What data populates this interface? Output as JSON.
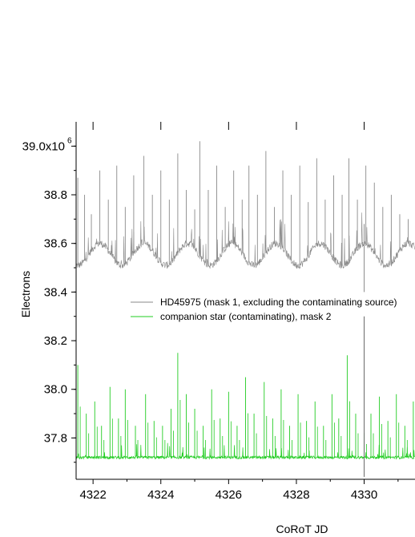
{
  "chart_data": {
    "type": "line",
    "xlabel": "CoRoT JD",
    "ylabel": "Electrons",
    "xlim": [
      4321.5,
      4331.5
    ],
    "ylim": [
      37.63,
      39.1
    ],
    "y_exponent_label": "x10",
    "y_exponent_power": "6",
    "x_ticks": [
      {
        "value": 4322,
        "label": "4322"
      },
      {
        "value": 4324,
        "label": "4324"
      },
      {
        "value": 4326,
        "label": "4326"
      },
      {
        "value": 4328,
        "label": "4328"
      },
      {
        "value": 4330,
        "label": "4330"
      }
    ],
    "y_ticks": [
      {
        "value": 37.8,
        "label": "37.8"
      },
      {
        "value": 38.0,
        "label": "38.0"
      },
      {
        "value": 38.2,
        "label": "38.2"
      },
      {
        "value": 38.4,
        "label": "38.4"
      },
      {
        "value": 38.6,
        "label": "38.6"
      },
      {
        "value": 38.8,
        "label": "38.8"
      },
      {
        "value": 39.0,
        "label": "39.0"
      }
    ],
    "legend_placement": "center-right",
    "series": [
      {
        "name": "HD45975 (mask 1, excluding the contaminating source)",
        "color": "#8a8a8a",
        "baseline": 38.555,
        "modulation_amplitude": 0.045,
        "modulation_period_days": 1.3,
        "spikes": [
          {
            "x": 4321.55,
            "y": 38.87
          },
          {
            "x": 4321.75,
            "y": 38.8
          },
          {
            "x": 4321.95,
            "y": 38.72
          },
          {
            "x": 4322.2,
            "y": 38.9
          },
          {
            "x": 4322.45,
            "y": 38.78
          },
          {
            "x": 4322.7,
            "y": 38.92
          },
          {
            "x": 4322.95,
            "y": 38.75
          },
          {
            "x": 4323.2,
            "y": 38.88
          },
          {
            "x": 4323.5,
            "y": 38.96
          },
          {
            "x": 4323.75,
            "y": 38.8
          },
          {
            "x": 4324.0,
            "y": 38.9
          },
          {
            "x": 4324.25,
            "y": 38.78
          },
          {
            "x": 4324.5,
            "y": 38.97
          },
          {
            "x": 4324.75,
            "y": 38.82
          },
          {
            "x": 4325.0,
            "y": 38.74
          },
          {
            "x": 4325.15,
            "y": 39.02
          },
          {
            "x": 4325.4,
            "y": 38.82
          },
          {
            "x": 4325.65,
            "y": 38.92
          },
          {
            "x": 4325.9,
            "y": 38.75
          },
          {
            "x": 4326.15,
            "y": 38.9
          },
          {
            "x": 4326.4,
            "y": 38.78
          },
          {
            "x": 4326.6,
            "y": 38.92
          },
          {
            "x": 4326.85,
            "y": 38.8
          },
          {
            "x": 4327.1,
            "y": 38.98
          },
          {
            "x": 4327.35,
            "y": 38.75
          },
          {
            "x": 4327.6,
            "y": 38.9
          },
          {
            "x": 4327.85,
            "y": 38.8
          },
          {
            "x": 4328.1,
            "y": 38.92
          },
          {
            "x": 4328.35,
            "y": 38.77
          },
          {
            "x": 4328.6,
            "y": 38.95
          },
          {
            "x": 4328.85,
            "y": 38.78
          },
          {
            "x": 4329.1,
            "y": 38.88
          },
          {
            "x": 4329.35,
            "y": 38.8
          },
          {
            "x": 4329.55,
            "y": 38.95
          },
          {
            "x": 4329.8,
            "y": 38.78
          },
          {
            "x": 4330.05,
            "y": 38.92
          },
          {
            "x": 4330.3,
            "y": 38.85
          },
          {
            "x": 4330.55,
            "y": 38.75
          },
          {
            "x": 4330.8,
            "y": 38.8
          },
          {
            "x": 4331.05,
            "y": 38.72
          },
          {
            "x": 4331.3,
            "y": 38.7
          }
        ]
      },
      {
        "name": "companion star (contaminating), mask 2",
        "color": "#22cc22",
        "baseline": 37.72,
        "spikes": [
          {
            "x": 4321.55,
            "y": 38.1
          },
          {
            "x": 4321.8,
            "y": 37.9
          },
          {
            "x": 4322.05,
            "y": 37.95
          },
          {
            "x": 4322.25,
            "y": 37.85
          },
          {
            "x": 4322.5,
            "y": 38.01
          },
          {
            "x": 4322.75,
            "y": 37.88
          },
          {
            "x": 4322.95,
            "y": 38.0
          },
          {
            "x": 4323.25,
            "y": 37.85
          },
          {
            "x": 4323.55,
            "y": 37.98
          },
          {
            "x": 4323.8,
            "y": 37.87
          },
          {
            "x": 4324.05,
            "y": 37.85
          },
          {
            "x": 4324.3,
            "y": 37.92
          },
          {
            "x": 4324.5,
            "y": 38.15
          },
          {
            "x": 4324.75,
            "y": 37.98
          },
          {
            "x": 4325.0,
            "y": 37.92
          },
          {
            "x": 4325.25,
            "y": 37.85
          },
          {
            "x": 4325.5,
            "y": 38.0
          },
          {
            "x": 4325.75,
            "y": 37.88
          },
          {
            "x": 4326.0,
            "y": 37.99
          },
          {
            "x": 4326.25,
            "y": 37.85
          },
          {
            "x": 4326.5,
            "y": 38.05
          },
          {
            "x": 4326.75,
            "y": 37.9
          },
          {
            "x": 4327.05,
            "y": 38.03
          },
          {
            "x": 4327.3,
            "y": 37.88
          },
          {
            "x": 4327.55,
            "y": 38.0
          },
          {
            "x": 4327.8,
            "y": 37.85
          },
          {
            "x": 4328.05,
            "y": 37.98
          },
          {
            "x": 4328.3,
            "y": 37.87
          },
          {
            "x": 4328.55,
            "y": 37.95
          },
          {
            "x": 4328.8,
            "y": 37.85
          },
          {
            "x": 4329.05,
            "y": 37.98
          },
          {
            "x": 4329.25,
            "y": 37.88
          },
          {
            "x": 4329.5,
            "y": 38.14
          },
          {
            "x": 4329.75,
            "y": 37.9
          },
          {
            "x": 4330.0,
            "y": 37.82
          },
          {
            "x": 4330.2,
            "y": 37.9
          },
          {
            "x": 4330.45,
            "y": 37.97
          },
          {
            "x": 4330.7,
            "y": 37.87
          },
          {
            "x": 4330.95,
            "y": 37.98
          },
          {
            "x": 4331.2,
            "y": 37.85
          },
          {
            "x": 4331.45,
            "y": 37.95
          }
        ]
      }
    ],
    "vertical_lines": [
      {
        "x": 4330.0,
        "y_from": 37.64,
        "y_to": 38.3,
        "color": "#666666"
      },
      {
        "x": 4330.0,
        "y_from": 38.4,
        "y_to": 38.68,
        "color": "#8a8a8a"
      }
    ]
  }
}
